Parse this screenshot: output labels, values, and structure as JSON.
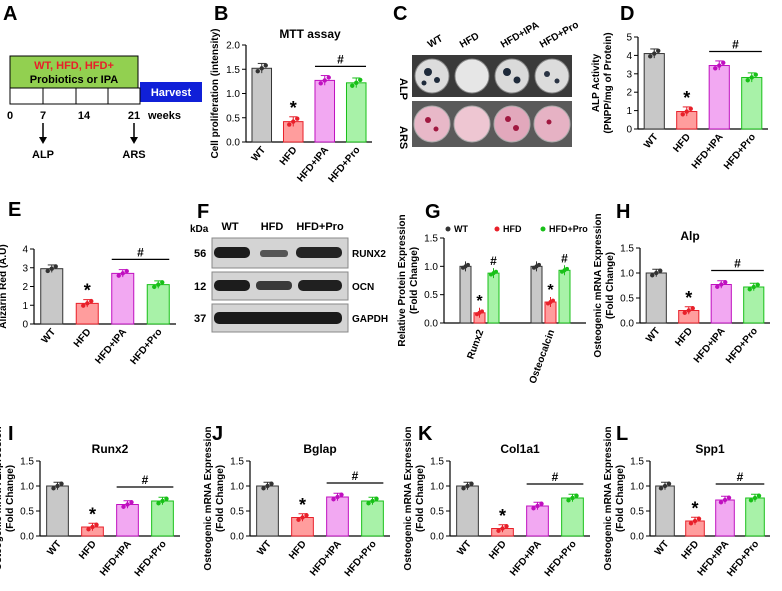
{
  "colors": {
    "WT": "#c8c8c8",
    "HFD": "#ff9d9d",
    "HFD+IPA": "#f2a8f2",
    "HFD+Pro": "#a8f2a8",
    "WT_stroke": "#333333",
    "HFD_stroke": "#e8202a",
    "IPA_stroke": "#c010c0",
    "Pro_stroke": "#18c018",
    "harvest": "#1020d8",
    "timeline_fill": "#92d050",
    "red_text": "#e8202a"
  },
  "panelA": {
    "label": "A",
    "line1": "WT, HFD, HFD+",
    "line2": "Probiotics or IPA",
    "harvest": "Harvest",
    "ticks": [
      "0",
      "7",
      "14",
      "21"
    ],
    "unit": "weeks",
    "assay1": "ALP",
    "assay2": "ARS"
  },
  "panelC": {
    "label": "C",
    "groups": [
      "WT",
      "HFD",
      "HFD+IPA",
      "HFD+Pro"
    ],
    "row1": "ALP",
    "row2": "ARS"
  },
  "panelF": {
    "label": "F",
    "kda_label": "kDa",
    "groups": [
      "WT",
      "HFD",
      "HFD+Pro"
    ],
    "bands": [
      {
        "kda": "56",
        "name": "RUNX2"
      },
      {
        "kda": "12",
        "name": "OCN"
      },
      {
        "kda": "37",
        "name": "GAPDH"
      }
    ]
  },
  "chart_data": [
    {
      "panel": "B",
      "type": "bar",
      "title": "MTT assay",
      "ylabel": "Cell proliferation (intensity)",
      "categories": [
        "WT",
        "HFD",
        "HFD+IPA",
        "HFD+Pro"
      ],
      "values": [
        1.52,
        0.42,
        1.27,
        1.22
      ],
      "ylim": [
        0,
        2.0
      ],
      "yticks": [
        "0.0",
        "0.5",
        "1.0",
        "1.5",
        "2.0"
      ],
      "markers": {
        "star": [
          "*",
          1
        ],
        "hash": [
          "#",
          2,
          3
        ]
      }
    },
    {
      "panel": "D",
      "type": "bar",
      "title": "",
      "ylabel": "ALP Activity (PNPP/mg of Protein)",
      "categories": [
        "WT",
        "HFD",
        "HFD+IPA",
        "HFD+Pro"
      ],
      "values": [
        4.1,
        0.95,
        3.45,
        2.8
      ],
      "ylim": [
        0,
        5
      ],
      "yticks": [
        "0",
        "1",
        "2",
        "3",
        "4",
        "5"
      ],
      "markers": {
        "star": [
          "*",
          1
        ],
        "hash": [
          "#",
          2,
          3
        ]
      }
    },
    {
      "panel": "E",
      "type": "bar",
      "title": "",
      "ylabel": "Alizarin Red (A.U)",
      "categories": [
        "WT",
        "HFD",
        "HFD+IPA",
        "HFD+Pro"
      ],
      "values": [
        2.95,
        1.1,
        2.7,
        2.1
      ],
      "ylim": [
        0,
        4
      ],
      "yticks": [
        "0",
        "1",
        "2",
        "3",
        "4"
      ],
      "markers": {
        "star": [
          "*",
          1
        ],
        "hash": [
          "#",
          2,
          3
        ]
      }
    },
    {
      "panel": "G",
      "type": "bar",
      "title": "",
      "ylabel": "Relative Protein Expression (Fold Change)",
      "legend": [
        "WT",
        "HFD",
        "HFD+Pro"
      ],
      "categories": [
        "Runx2",
        "Osteocalcin"
      ],
      "series": [
        {
          "name": "WT",
          "values": [
            1.0,
            1.0
          ]
        },
        {
          "name": "HFD",
          "values": [
            0.18,
            0.37
          ]
        },
        {
          "name": "HFD+Pro",
          "values": [
            0.88,
            0.93
          ]
        }
      ],
      "ylim": [
        0,
        1.5
      ],
      "yticks": [
        "0.0",
        "0.5",
        "1.0",
        "1.5"
      ],
      "markers": {
        "star": [
          "*"
        ],
        "hash": [
          "#"
        ]
      }
    },
    {
      "panel": "H",
      "type": "bar",
      "title": "Alp",
      "ylabel": "Osteogenic mRNA Expression (Fold Change)",
      "categories": [
        "WT",
        "HFD",
        "HFD+IPA",
        "HFD+Pro"
      ],
      "values": [
        1.0,
        0.25,
        0.77,
        0.72
      ],
      "ylim": [
        0,
        1.5
      ],
      "yticks": [
        "0.0",
        "0.5",
        "1.0",
        "1.5"
      ],
      "markers": {
        "star": [
          "*",
          1
        ],
        "hash": [
          "#",
          2,
          3
        ]
      }
    },
    {
      "panel": "I",
      "type": "bar",
      "title": "Runx2",
      "ylabel": "Osteogenic mRNA Expression (Fold Change)",
      "categories": [
        "WT",
        "HFD",
        "HFD+IPA",
        "HFD+Pro"
      ],
      "values": [
        1.0,
        0.18,
        0.63,
        0.7
      ],
      "ylim": [
        0,
        1.5
      ],
      "yticks": [
        "0.0",
        "0.5",
        "1.0",
        "1.5"
      ],
      "markers": {
        "star": [
          "*",
          1
        ],
        "hash": [
          "#",
          2,
          3
        ]
      }
    },
    {
      "panel": "J",
      "type": "bar",
      "title": "Bglap",
      "ylabel": "Osteogenic mRNA Expression (Fold Change)",
      "categories": [
        "WT",
        "HFD",
        "HFD+IPA",
        "HFD+Pro"
      ],
      "values": [
        1.0,
        0.37,
        0.78,
        0.7
      ],
      "ylim": [
        0,
        1.5
      ],
      "yticks": [
        "0.0",
        "0.5",
        "1.0",
        "1.5"
      ],
      "markers": {
        "star": [
          "*",
          1
        ],
        "hash": [
          "#",
          2,
          3
        ]
      }
    },
    {
      "panel": "K",
      "type": "bar",
      "title": "Col1a1",
      "ylabel": "Osteogenic mRNA Expression (Fold Change)",
      "categories": [
        "WT",
        "HFD",
        "HFD+IPA",
        "HFD+Pro"
      ],
      "values": [
        1.0,
        0.15,
        0.6,
        0.76
      ],
      "ylim": [
        0,
        1.5
      ],
      "yticks": [
        "0.0",
        "0.5",
        "1.0",
        "1.5"
      ],
      "markers": {
        "star": [
          "*",
          1
        ],
        "hash": [
          "#",
          2,
          3
        ]
      }
    },
    {
      "panel": "L",
      "type": "bar",
      "title": "Spp1",
      "ylabel": "Osteogenic mRNA Expression (Fold Change)",
      "categories": [
        "WT",
        "HFD",
        "HFD+IPA",
        "HFD+Pro"
      ],
      "values": [
        1.0,
        0.3,
        0.72,
        0.76
      ],
      "ylim": [
        0,
        1.5
      ],
      "yticks": [
        "0.0",
        "0.5",
        "1.0",
        "1.5"
      ],
      "markers": {
        "star": [
          "*",
          1
        ],
        "hash": [
          "#",
          2,
          3
        ]
      }
    }
  ]
}
